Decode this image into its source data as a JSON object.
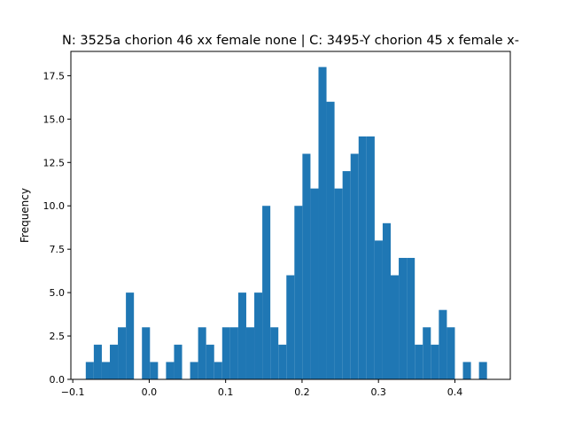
{
  "chart_data": {
    "type": "bar",
    "title": "N: 3525a chorion 46 xx female none | C: 3495-Y chorion 45 x female x-",
    "xlabel": "",
    "ylabel": "Frequency",
    "xlim": [
      -0.1025,
      0.4725
    ],
    "ylim": [
      0,
      18.9
    ],
    "bar_color": "#1f77b4",
    "bin_width": 0.0105,
    "bin_start": -0.083,
    "values": [
      1,
      2,
      1,
      2,
      3,
      5,
      0,
      3,
      1,
      0,
      1,
      2,
      0,
      1,
      3,
      2,
      1,
      3,
      3,
      5,
      3,
      5,
      10,
      3,
      2,
      6,
      10,
      13,
      11,
      18,
      16,
      11,
      12,
      13,
      14,
      14,
      8,
      9,
      6,
      7,
      7,
      2,
      3,
      2,
      4,
      3,
      0,
      1,
      0,
      1
    ],
    "xticks": [
      -0.1,
      0.0,
      0.1,
      0.2,
      0.3,
      0.4
    ],
    "xtick_labels": [
      "−0.1",
      "0.0",
      "0.1",
      "0.2",
      "0.3",
      "0.4"
    ],
    "yticks": [
      0,
      2.5,
      5,
      7.5,
      10,
      12.5,
      15,
      17.5
    ],
    "ytick_labels": [
      "0.0",
      "2.5",
      "5.0",
      "7.5",
      "10.0",
      "12.5",
      "15.0",
      "17.5"
    ],
    "grid": false,
    "legend": "none"
  }
}
